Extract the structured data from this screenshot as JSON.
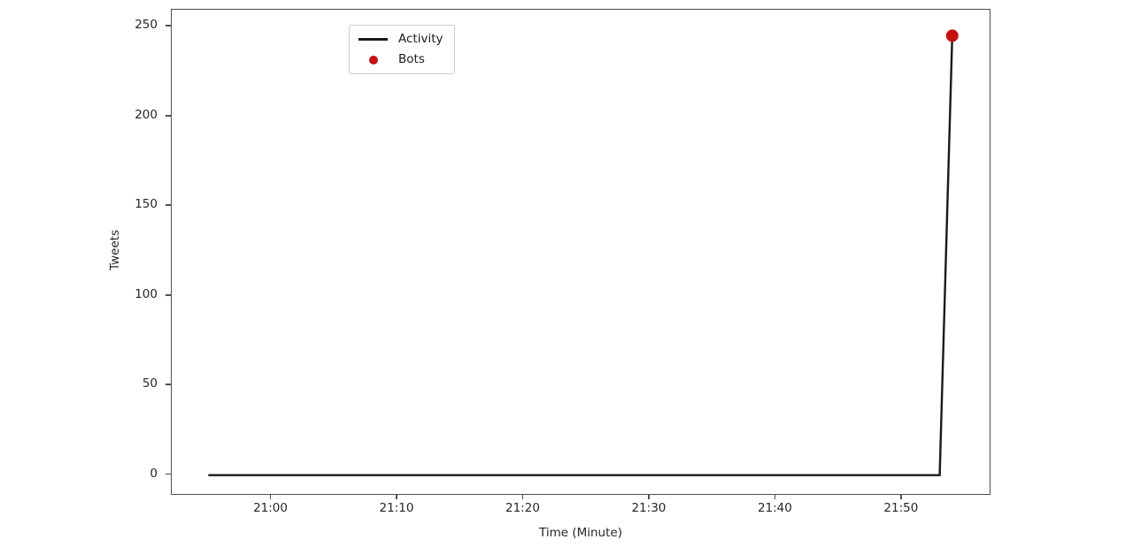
{
  "figure": {
    "background": "#ffffff",
    "axis_color": "#4f4f4f",
    "text_color": "#262626"
  },
  "chart_data": {
    "type": "line",
    "title": "",
    "xlabel": "Time (Minute)",
    "ylabel": "Tweets",
    "grid": false,
    "legend_position": "upper-left",
    "x_unit": "time of day (HH:MM), mapped to minutes relative to 21:00",
    "xlim_minutes": [
      -7.9,
      57.1
    ],
    "ylim": [
      -11.5,
      259.5
    ],
    "x_ticks": [
      {
        "value": "21:00",
        "label": "21:00"
      },
      {
        "value": "21:10",
        "label": "21:10"
      },
      {
        "value": "21:20",
        "label": "21:20"
      },
      {
        "value": "21:30",
        "label": "21:30"
      },
      {
        "value": "21:40",
        "label": "21:40"
      },
      {
        "value": "21:50",
        "label": "21:50"
      }
    ],
    "y_ticks": [
      {
        "value": 0,
        "label": "0"
      },
      {
        "value": 50,
        "label": "50"
      },
      {
        "value": 100,
        "label": "100"
      },
      {
        "value": 150,
        "label": "150"
      },
      {
        "value": 200,
        "label": "200"
      },
      {
        "value": 250,
        "label": "250"
      }
    ],
    "series": [
      {
        "name": "Activity",
        "type": "line",
        "color": "#1a1a1a",
        "line_width": 2.4,
        "points": [
          [
            "20:55",
            0
          ],
          [
            "21:53",
            0
          ],
          [
            "21:54",
            245
          ]
        ]
      },
      {
        "name": "Bots",
        "type": "scatter",
        "color": "#c41111",
        "marker_radius": 7,
        "points": [
          [
            "21:54",
            245
          ]
        ]
      }
    ]
  }
}
